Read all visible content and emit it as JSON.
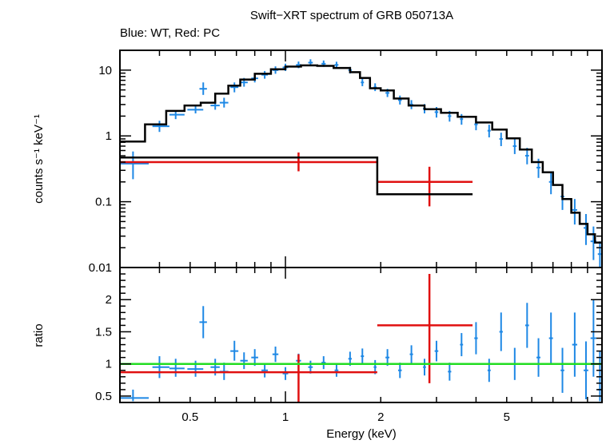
{
  "title": "Swift−XRT spectrum of GRB 050713A",
  "subtitle": "Blue: WT, Red: PC",
  "colors": {
    "wt": "#1e88e5",
    "pc": "#e01010",
    "model": "#000000",
    "unity": "#22dd22"
  },
  "chart_data": [
    {
      "type": "scatter",
      "panel": "spectrum",
      "xlabel": "Energy (keV)",
      "ylabel": "counts s⁻¹ keV⁻¹",
      "xscale": "log",
      "yscale": "log",
      "xlim": [
        0.3,
        10
      ],
      "ylim": [
        0.01,
        20
      ],
      "yticks": [
        {
          "v": 0.01,
          "label": "0.01"
        },
        {
          "v": 0.1,
          "label": "0.1"
        },
        {
          "v": 1,
          "label": "1"
        },
        {
          "v": 10,
          "label": "10"
        }
      ],
      "series": [
        {
          "key": "wt",
          "kind": "points",
          "points": [
            {
              "x": 0.33,
              "y": 0.38,
              "xlo": 0.3,
              "xhi": 0.37,
              "ylo": 0.22,
              "yhi": 0.58
            },
            {
              "x": 0.4,
              "y": 1.4,
              "xlo": 0.38,
              "xhi": 0.43,
              "ylo": 1.15,
              "yhi": 1.7
            },
            {
              "x": 0.45,
              "y": 2.1,
              "xlo": 0.43,
              "xhi": 0.48,
              "ylo": 1.8,
              "yhi": 2.45
            },
            {
              "x": 0.52,
              "y": 2.5,
              "xlo": 0.49,
              "xhi": 0.55,
              "ylo": 2.2,
              "yhi": 2.9
            },
            {
              "x": 0.55,
              "y": 5.2,
              "xlo": 0.535,
              "xhi": 0.565,
              "ylo": 4.2,
              "yhi": 6.5
            },
            {
              "x": 0.6,
              "y": 2.9,
              "xlo": 0.58,
              "xhi": 0.62,
              "ylo": 2.5,
              "yhi": 3.4
            },
            {
              "x": 0.64,
              "y": 3.2,
              "xlo": 0.62,
              "xhi": 0.66,
              "ylo": 2.7,
              "yhi": 3.8
            },
            {
              "x": 0.69,
              "y": 5.5,
              "xlo": 0.67,
              "xhi": 0.71,
              "ylo": 4.6,
              "yhi": 6.5
            },
            {
              "x": 0.74,
              "y": 6.5,
              "xlo": 0.72,
              "xhi": 0.76,
              "ylo": 5.6,
              "yhi": 7.6
            },
            {
              "x": 0.8,
              "y": 7.5,
              "xlo": 0.78,
              "xhi": 0.82,
              "ylo": 6.5,
              "yhi": 8.6
            },
            {
              "x": 0.86,
              "y": 8.5,
              "xlo": 0.84,
              "xhi": 0.88,
              "ylo": 7.4,
              "yhi": 9.7
            },
            {
              "x": 0.93,
              "y": 10.0,
              "xlo": 0.91,
              "xhi": 0.95,
              "ylo": 8.8,
              "yhi": 11.4
            },
            {
              "x": 1.0,
              "y": 11.0,
              "xlo": 0.98,
              "xhi": 1.02,
              "ylo": 9.7,
              "yhi": 12.5
            },
            {
              "x": 1.1,
              "y": 12.0,
              "xlo": 1.08,
              "xhi": 1.12,
              "ylo": 10.7,
              "yhi": 13.5
            },
            {
              "x": 1.2,
              "y": 13.0,
              "xlo": 1.18,
              "xhi": 1.22,
              "ylo": 11.6,
              "yhi": 14.6
            },
            {
              "x": 1.32,
              "y": 12.5,
              "xlo": 1.3,
              "xhi": 1.34,
              "ylo": 11.2,
              "yhi": 14.0
            },
            {
              "x": 1.45,
              "y": 12.0,
              "xlo": 1.43,
              "xhi": 1.47,
              "ylo": 10.7,
              "yhi": 13.4
            },
            {
              "x": 1.6,
              "y": 10.0,
              "xlo": 1.58,
              "xhi": 1.62,
              "ylo": 8.9,
              "yhi": 11.2
            },
            {
              "x": 1.75,
              "y": 6.5,
              "xlo": 1.73,
              "xhi": 1.77,
              "ylo": 5.7,
              "yhi": 7.4
            },
            {
              "x": 1.92,
              "y": 5.5,
              "xlo": 1.9,
              "xhi": 1.94,
              "ylo": 4.8,
              "yhi": 6.3
            },
            {
              "x": 2.1,
              "y": 4.5,
              "xlo": 2.07,
              "xhi": 2.13,
              "ylo": 3.9,
              "yhi": 5.2
            },
            {
              "x": 2.3,
              "y": 3.5,
              "xlo": 2.27,
              "xhi": 2.33,
              "ylo": 3.0,
              "yhi": 4.1
            },
            {
              "x": 2.5,
              "y": 3.0,
              "xlo": 2.47,
              "xhi": 2.53,
              "ylo": 2.55,
              "yhi": 3.5
            },
            {
              "x": 2.75,
              "y": 2.6,
              "xlo": 2.72,
              "xhi": 2.78,
              "ylo": 2.2,
              "yhi": 3.05
            },
            {
              "x": 3.0,
              "y": 2.3,
              "xlo": 2.96,
              "xhi": 3.04,
              "ylo": 1.9,
              "yhi": 2.75
            },
            {
              "x": 3.3,
              "y": 2.0,
              "xlo": 3.26,
              "xhi": 3.34,
              "ylo": 1.65,
              "yhi": 2.4
            },
            {
              "x": 3.6,
              "y": 1.8,
              "xlo": 3.56,
              "xhi": 3.64,
              "ylo": 1.48,
              "yhi": 2.15
            },
            {
              "x": 4.0,
              "y": 1.5,
              "xlo": 3.95,
              "xhi": 4.05,
              "ylo": 1.22,
              "yhi": 1.8
            },
            {
              "x": 4.4,
              "y": 1.2,
              "xlo": 4.35,
              "xhi": 4.45,
              "ylo": 0.95,
              "yhi": 1.48
            },
            {
              "x": 4.8,
              "y": 0.9,
              "xlo": 4.74,
              "xhi": 4.86,
              "ylo": 0.7,
              "yhi": 1.12
            },
            {
              "x": 5.3,
              "y": 0.7,
              "xlo": 5.23,
              "xhi": 5.37,
              "ylo": 0.53,
              "yhi": 0.9
            },
            {
              "x": 5.8,
              "y": 0.5,
              "xlo": 5.72,
              "xhi": 5.88,
              "ylo": 0.37,
              "yhi": 0.66
            },
            {
              "x": 6.3,
              "y": 0.33,
              "xlo": 6.21,
              "xhi": 6.39,
              "ylo": 0.23,
              "yhi": 0.45
            },
            {
              "x": 6.9,
              "y": 0.2,
              "xlo": 6.8,
              "xhi": 7.0,
              "ylo": 0.13,
              "yhi": 0.29
            },
            {
              "x": 7.5,
              "y": 0.12,
              "xlo": 7.4,
              "xhi": 7.6,
              "ylo": 0.075,
              "yhi": 0.18
            },
            {
              "x": 8.2,
              "y": 0.075,
              "xlo": 8.05,
              "xhi": 8.35,
              "ylo": 0.045,
              "yhi": 0.11
            },
            {
              "x": 8.9,
              "y": 0.04,
              "xlo": 8.75,
              "xhi": 9.05,
              "ylo": 0.022,
              "yhi": 0.065
            },
            {
              "x": 9.4,
              "y": 0.025,
              "xlo": 9.2,
              "xhi": 9.6,
              "ylo": 0.013,
              "yhi": 0.042
            },
            {
              "x": 9.85,
              "y": 0.016,
              "xlo": 9.7,
              "xhi": 10.0,
              "ylo": 0.01,
              "yhi": 0.025
            }
          ]
        },
        {
          "key": "pc",
          "kind": "points",
          "points": [
            {
              "x": 1.1,
              "y": 0.4,
              "xlo": 0.3,
              "xhi": 1.95,
              "ylo": 0.29,
              "yhi": 0.56
            },
            {
              "x": 2.85,
              "y": 0.2,
              "xlo": 1.95,
              "xhi": 3.9,
              "ylo": 0.085,
              "yhi": 0.34
            }
          ]
        },
        {
          "key": "model",
          "kind": "step",
          "edges": [
            0.3,
            0.36,
            0.42,
            0.48,
            0.54,
            0.6,
            0.66,
            0.72,
            0.8,
            0.9,
            1.0,
            1.12,
            1.26,
            1.42,
            1.6,
            1.72,
            1.85,
            2.0,
            2.2,
            2.45,
            2.75,
            3.1,
            3.5,
            4.0,
            4.5,
            5.0,
            5.5,
            6.0,
            6.5,
            7.0,
            7.5,
            8.0,
            8.5,
            9.0,
            9.5,
            10.0
          ],
          "values": [
            0.82,
            1.5,
            2.4,
            2.9,
            3.2,
            4.4,
            5.8,
            7.2,
            8.8,
            10.3,
            11.3,
            11.8,
            11.6,
            10.8,
            9.3,
            7.6,
            5.3,
            4.9,
            3.7,
            2.9,
            2.55,
            2.25,
            1.95,
            1.6,
            1.25,
            0.92,
            0.62,
            0.4,
            0.28,
            0.18,
            0.11,
            0.068,
            0.046,
            0.032,
            0.024
          ]
        },
        {
          "key": "model",
          "kind": "step",
          "edges": [
            0.3,
            1.95,
            3.9
          ],
          "values": [
            0.47,
            0.13
          ]
        }
      ]
    },
    {
      "type": "scatter",
      "panel": "ratio",
      "xlabel": "Energy (keV)",
      "ylabel": "ratio",
      "xscale": "log",
      "xlim": [
        0.3,
        10
      ],
      "ylim": [
        0.4,
        2.5
      ],
      "xticks": [
        {
          "v": 0.5,
          "label": "0.5"
        },
        {
          "v": 1,
          "label": "1"
        },
        {
          "v": 2,
          "label": "2"
        },
        {
          "v": 5,
          "label": "5"
        }
      ],
      "yticks": [
        {
          "v": 0.5,
          "label": "0.5"
        },
        {
          "v": 1,
          "label": "1"
        },
        {
          "v": 1.5,
          "label": "1.5"
        },
        {
          "v": 2,
          "label": "2"
        }
      ],
      "reference_line": 1,
      "series": [
        {
          "key": "wt",
          "kind": "points",
          "points": [
            {
              "x": 0.33,
              "y": 0.47,
              "xlo": 0.3,
              "xhi": 0.37,
              "ylo": 0.42,
              "yhi": 0.6
            },
            {
              "x": 0.4,
              "y": 0.95,
              "xlo": 0.38,
              "xhi": 0.43,
              "ylo": 0.78,
              "yhi": 1.12
            },
            {
              "x": 0.45,
              "y": 0.93,
              "xlo": 0.43,
              "xhi": 0.48,
              "ylo": 0.8,
              "yhi": 1.08
            },
            {
              "x": 0.52,
              "y": 0.92,
              "xlo": 0.49,
              "xhi": 0.55,
              "ylo": 0.8,
              "yhi": 1.05
            },
            {
              "x": 0.55,
              "y": 1.65,
              "xlo": 0.535,
              "xhi": 0.565,
              "ylo": 1.4,
              "yhi": 1.9
            },
            {
              "x": 0.6,
              "y": 0.95,
              "xlo": 0.58,
              "xhi": 0.62,
              "ylo": 0.82,
              "yhi": 1.08
            },
            {
              "x": 0.64,
              "y": 0.88,
              "xlo": 0.62,
              "xhi": 0.66,
              "ylo": 0.75,
              "yhi": 1.02
            },
            {
              "x": 0.69,
              "y": 1.2,
              "xlo": 0.67,
              "xhi": 0.71,
              "ylo": 1.05,
              "yhi": 1.36
            },
            {
              "x": 0.74,
              "y": 1.05,
              "xlo": 0.72,
              "xhi": 0.76,
              "ylo": 0.92,
              "yhi": 1.18
            },
            {
              "x": 0.8,
              "y": 1.1,
              "xlo": 0.78,
              "xhi": 0.82,
              "ylo": 0.97,
              "yhi": 1.23
            },
            {
              "x": 0.86,
              "y": 0.9,
              "xlo": 0.84,
              "xhi": 0.88,
              "ylo": 0.79,
              "yhi": 1.01
            },
            {
              "x": 0.93,
              "y": 1.15,
              "xlo": 0.91,
              "xhi": 0.95,
              "ylo": 1.03,
              "yhi": 1.27
            },
            {
              "x": 1.0,
              "y": 0.85,
              "xlo": 0.98,
              "xhi": 1.02,
              "ylo": 0.75,
              "yhi": 0.95
            },
            {
              "x": 1.1,
              "y": 1.05,
              "xlo": 1.08,
              "xhi": 1.12,
              "ylo": 0.94,
              "yhi": 1.16
            },
            {
              "x": 1.2,
              "y": 0.95,
              "xlo": 1.18,
              "xhi": 1.22,
              "ylo": 0.85,
              "yhi": 1.05
            },
            {
              "x": 1.32,
              "y": 1.02,
              "xlo": 1.3,
              "xhi": 1.34,
              "ylo": 0.92,
              "yhi": 1.12
            },
            {
              "x": 1.45,
              "y": 0.9,
              "xlo": 1.43,
              "xhi": 1.47,
              "ylo": 0.8,
              "yhi": 1.0
            },
            {
              "x": 1.6,
              "y": 1.08,
              "xlo": 1.58,
              "xhi": 1.62,
              "ylo": 0.97,
              "yhi": 1.19
            },
            {
              "x": 1.75,
              "y": 1.12,
              "xlo": 1.73,
              "xhi": 1.77,
              "ylo": 1.0,
              "yhi": 1.24
            },
            {
              "x": 1.92,
              "y": 0.95,
              "xlo": 1.9,
              "xhi": 1.94,
              "ylo": 0.84,
              "yhi": 1.06
            },
            {
              "x": 2.1,
              "y": 1.1,
              "xlo": 2.07,
              "xhi": 2.13,
              "ylo": 0.97,
              "yhi": 1.23
            },
            {
              "x": 2.3,
              "y": 0.9,
              "xlo": 2.27,
              "xhi": 2.33,
              "ylo": 0.78,
              "yhi": 1.02
            },
            {
              "x": 2.5,
              "y": 1.15,
              "xlo": 2.47,
              "xhi": 2.53,
              "ylo": 1.01,
              "yhi": 1.29
            },
            {
              "x": 2.75,
              "y": 0.95,
              "xlo": 2.72,
              "xhi": 2.78,
              "ylo": 0.82,
              "yhi": 1.08
            },
            {
              "x": 3.0,
              "y": 1.2,
              "xlo": 2.96,
              "xhi": 3.04,
              "ylo": 1.04,
              "yhi": 1.36
            },
            {
              "x": 3.3,
              "y": 0.88,
              "xlo": 3.26,
              "xhi": 3.34,
              "ylo": 0.74,
              "yhi": 1.02
            },
            {
              "x": 3.6,
              "y": 1.3,
              "xlo": 3.56,
              "xhi": 3.64,
              "ylo": 1.12,
              "yhi": 1.48
            },
            {
              "x": 4.0,
              "y": 1.4,
              "xlo": 3.95,
              "xhi": 4.05,
              "ylo": 1.15,
              "yhi": 1.65
            },
            {
              "x": 4.4,
              "y": 0.9,
              "xlo": 4.35,
              "xhi": 4.45,
              "ylo": 0.72,
              "yhi": 1.08
            },
            {
              "x": 4.8,
              "y": 1.5,
              "xlo": 4.74,
              "xhi": 4.86,
              "ylo": 1.2,
              "yhi": 1.8
            },
            {
              "x": 5.3,
              "y": 1.0,
              "xlo": 5.23,
              "xhi": 5.37,
              "ylo": 0.75,
              "yhi": 1.25
            },
            {
              "x": 5.8,
              "y": 1.6,
              "xlo": 5.72,
              "xhi": 5.88,
              "ylo": 1.25,
              "yhi": 1.95
            },
            {
              "x": 6.3,
              "y": 1.1,
              "xlo": 6.21,
              "xhi": 6.39,
              "ylo": 0.8,
              "yhi": 1.4
            },
            {
              "x": 6.9,
              "y": 1.4,
              "xlo": 6.8,
              "xhi": 7.0,
              "ylo": 1.0,
              "yhi": 1.8
            },
            {
              "x": 7.5,
              "y": 0.9,
              "xlo": 7.4,
              "xhi": 7.6,
              "ylo": 0.55,
              "yhi": 1.25
            },
            {
              "x": 8.2,
              "y": 1.3,
              "xlo": 8.05,
              "xhi": 8.35,
              "ylo": 0.8,
              "yhi": 1.8
            },
            {
              "x": 8.9,
              "y": 0.9,
              "xlo": 8.75,
              "xhi": 9.05,
              "ylo": 0.45,
              "yhi": 1.35
            },
            {
              "x": 9.4,
              "y": 1.4,
              "xlo": 9.2,
              "xhi": 9.6,
              "ylo": 0.8,
              "yhi": 2.0
            },
            {
              "x": 9.85,
              "y": 0.6,
              "xlo": 9.7,
              "xhi": 10.0,
              "ylo": 0.42,
              "yhi": 1.2
            }
          ]
        },
        {
          "key": "pc",
          "kind": "points",
          "points": [
            {
              "x": 1.1,
              "y": 0.87,
              "xlo": 0.3,
              "xhi": 1.95,
              "ylo": 0.4,
              "yhi": 1.15
            },
            {
              "x": 2.85,
              "y": 1.6,
              "xlo": 1.95,
              "xhi": 3.9,
              "ylo": 0.7,
              "yhi": 2.4
            }
          ]
        }
      ]
    }
  ]
}
